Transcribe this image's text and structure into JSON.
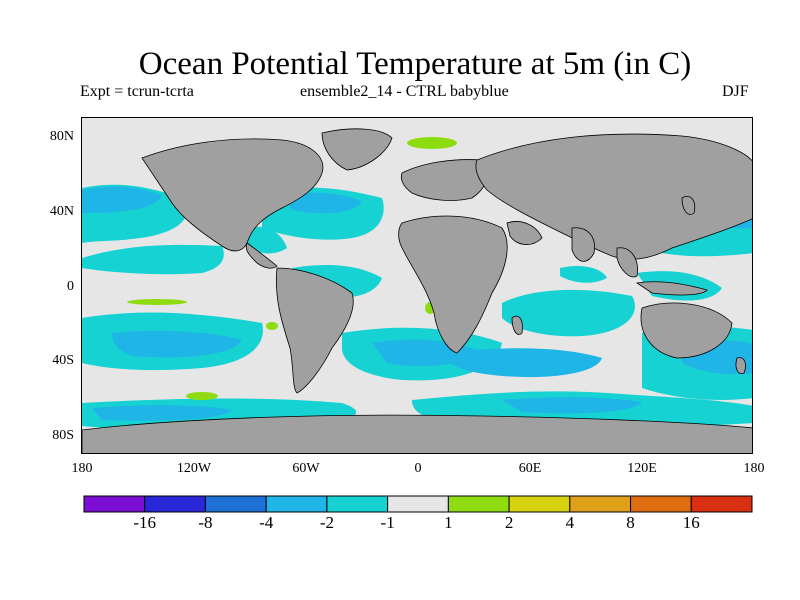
{
  "title": "Ocean Potential Temperature at 5m (in C)",
  "subtitle_left": "Expt = tcrun-tcrta",
  "subtitle_center": "ensemble2_14 - CTRL babyblue",
  "subtitle_right": "DJF",
  "lat_labels": [
    "80N",
    "40N",
    "0",
    "40S",
    "80S"
  ],
  "lon_labels": [
    "180",
    "120W",
    "60W",
    "0",
    "60E",
    "120E",
    "180"
  ],
  "colorbar": {
    "colors": [
      "#7b0fd6",
      "#2a27d8",
      "#1e6fd6",
      "#1fb5e6",
      "#17d2d2",
      "#e6e6e6",
      "#8edc10",
      "#d6d20f",
      "#e0a01a",
      "#e06e10",
      "#d83010"
    ],
    "labels": [
      "-16",
      "-8",
      "-4",
      "-2",
      "-1",
      "1",
      "2",
      "4",
      "8",
      "16"
    ]
  },
  "map_colors": {
    "land": "#a0a0a0",
    "ocean_neutral": "#e6e6e6",
    "cool_minus1_to_minus2": "#17d2d2",
    "cool_minus2_to_minus4": "#1fb5e6",
    "warm_1_to_2": "#8edc10"
  }
}
